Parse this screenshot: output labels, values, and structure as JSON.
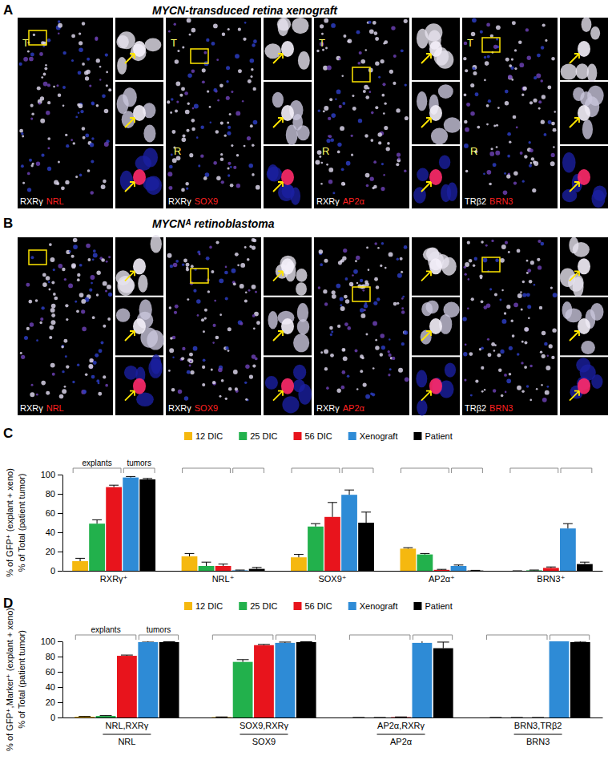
{
  "figure": {
    "panels": [
      {
        "panel_label": "A",
        "title": "MYCN-transduced retina xenograft",
        "images": [
          {
            "stains": [
              "RXRγ",
              "NRL"
            ],
            "tissue_labels": [
              "T"
            ]
          },
          {
            "stains": [
              "RXRγ",
              "SOX9"
            ],
            "tissue_labels": [
              "T",
              "R"
            ]
          },
          {
            "stains": [
              "RXRγ",
              "AP2α"
            ],
            "tissue_labels": [
              "T",
              "R"
            ]
          },
          {
            "stains": [
              "TRβ2",
              "BRN3"
            ],
            "tissue_labels": [
              "T",
              "R"
            ]
          }
        ]
      },
      {
        "panel_label": "B",
        "title": "MYCNᴬ retinoblastoma",
        "images": [
          {
            "stains": [
              "RXRγ",
              "NRL"
            ]
          },
          {
            "stains": [
              "RXRγ",
              "SOX9"
            ]
          },
          {
            "stains": [
              "RXRγ",
              "AP2α"
            ]
          },
          {
            "stains": [
              "TRβ2",
              "BRN3"
            ]
          }
        ]
      }
    ]
  },
  "chart_data": [
    {
      "panel_label": "C",
      "type": "bar",
      "y_label": "% of GFP⁺ (explant + xeno)",
      "y_label_2": "% of Total (patient tumor)",
      "categories": [
        "RXRγ⁺",
        "NRL⁺",
        "SOX9⁺",
        "AP2α⁺",
        "BRN3⁺"
      ],
      "group_labels": [
        "explants",
        "tumors"
      ],
      "series": [
        {
          "name": "12 DIC",
          "color": "#f5b80f",
          "values": [
            10,
            15,
            14,
            23,
            0
          ],
          "errors": [
            3,
            3,
            3,
            1,
            0
          ]
        },
        {
          "name": "25 DIC",
          "color": "#22b14c",
          "values": [
            49,
            5,
            46,
            17,
            0.5
          ],
          "errors": [
            4,
            4,
            3,
            1,
            0.3
          ]
        },
        {
          "name": "56 DIC",
          "color": "#e8141c",
          "values": [
            87,
            5,
            56,
            1,
            3
          ],
          "errors": [
            2,
            2,
            15,
            0.5,
            1
          ]
        },
        {
          "name": "Xenograft",
          "color": "#2e8bd6",
          "values": [
            97,
            0.5,
            79,
            5,
            44
          ],
          "errors": [
            1,
            0.3,
            5,
            1,
            5
          ]
        },
        {
          "name": "Patient",
          "color": "#000000",
          "values": [
            95,
            2,
            50,
            0.3,
            7
          ],
          "errors": [
            1,
            1.5,
            11,
            0.2,
            2
          ]
        }
      ],
      "ylim": [
        0,
        100
      ],
      "yticks": [
        0,
        20,
        40,
        60,
        80,
        100
      ],
      "legend": "top"
    },
    {
      "panel_label": "D",
      "type": "bar",
      "y_label": "% of GFP⁺,Marker⁺ (explant + xeno)",
      "y_label_2": "% of Total (patient tumor)",
      "categories": [
        "NRL,RXRγ",
        "SOX9,RXRγ",
        "AP2α,RXRγ",
        "BRN3,TRβ2"
      ],
      "category_denominators": [
        "NRL",
        "SOX9",
        "AP2α",
        "BRN3"
      ],
      "group_labels": [
        "explants",
        "tumors"
      ],
      "series": [
        {
          "name": "12 DIC",
          "color": "#f5b80f",
          "values": [
            1,
            0.5,
            0,
            0
          ],
          "errors": [
            0.5,
            0.3,
            0,
            0
          ]
        },
        {
          "name": "25 DIC",
          "color": "#22b14c",
          "values": [
            2,
            73,
            0,
            0
          ],
          "errors": [
            0.5,
            3,
            0,
            0
          ]
        },
        {
          "name": "56 DIC",
          "color": "#e8141c",
          "values": [
            81,
            95,
            0.5,
            0
          ],
          "errors": [
            1,
            1,
            0.3,
            0
          ]
        },
        {
          "name": "Xenograft",
          "color": "#2e8bd6",
          "values": [
            99,
            98,
            98,
            100
          ],
          "errors": [
            1,
            1,
            7,
            1
          ]
        },
        {
          "name": "Patient",
          "color": "#000000",
          "values": [
            99,
            99,
            91,
            99
          ],
          "errors": [
            0.5,
            0.5,
            8,
            1
          ]
        }
      ],
      "ylim": [
        0,
        100
      ],
      "yticks": [
        0,
        20,
        40,
        60,
        80,
        100
      ],
      "legend": "top"
    }
  ]
}
